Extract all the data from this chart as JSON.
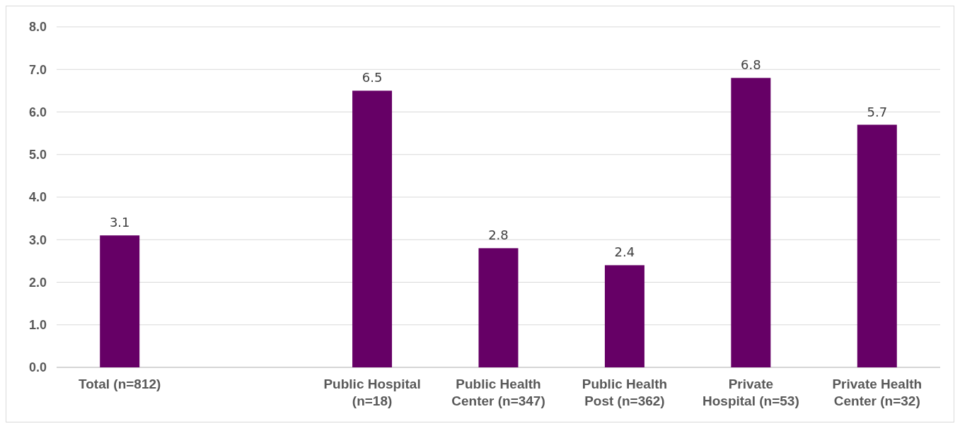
{
  "chart_data": {
    "type": "bar",
    "categories": [
      "Total (n=812)",
      null,
      "Public Hospital (n=18)",
      "Public Health Center (n=347)",
      "Public Health Post (n=362)",
      "Private Hospital (n=53)",
      "Private Health Center (n=32)"
    ],
    "values": [
      3.1,
      null,
      6.5,
      2.8,
      2.4,
      6.8,
      5.7
    ],
    "color": "#660066",
    "ylim": [
      0,
      8
    ],
    "yticks": [
      {
        "value": 0,
        "label": "0.0"
      },
      {
        "value": 1,
        "label": "1.0"
      },
      {
        "value": 2,
        "label": "2.0"
      },
      {
        "value": 3,
        "label": "3.0"
      },
      {
        "value": 4,
        "label": "4.0"
      },
      {
        "value": 5,
        "label": "5.0"
      },
      {
        "value": 6,
        "label": "6.0"
      },
      {
        "value": 7,
        "label": "7.0"
      },
      {
        "value": 8,
        "label": "8.0"
      }
    ],
    "grid": "y",
    "data_labels": true
  }
}
